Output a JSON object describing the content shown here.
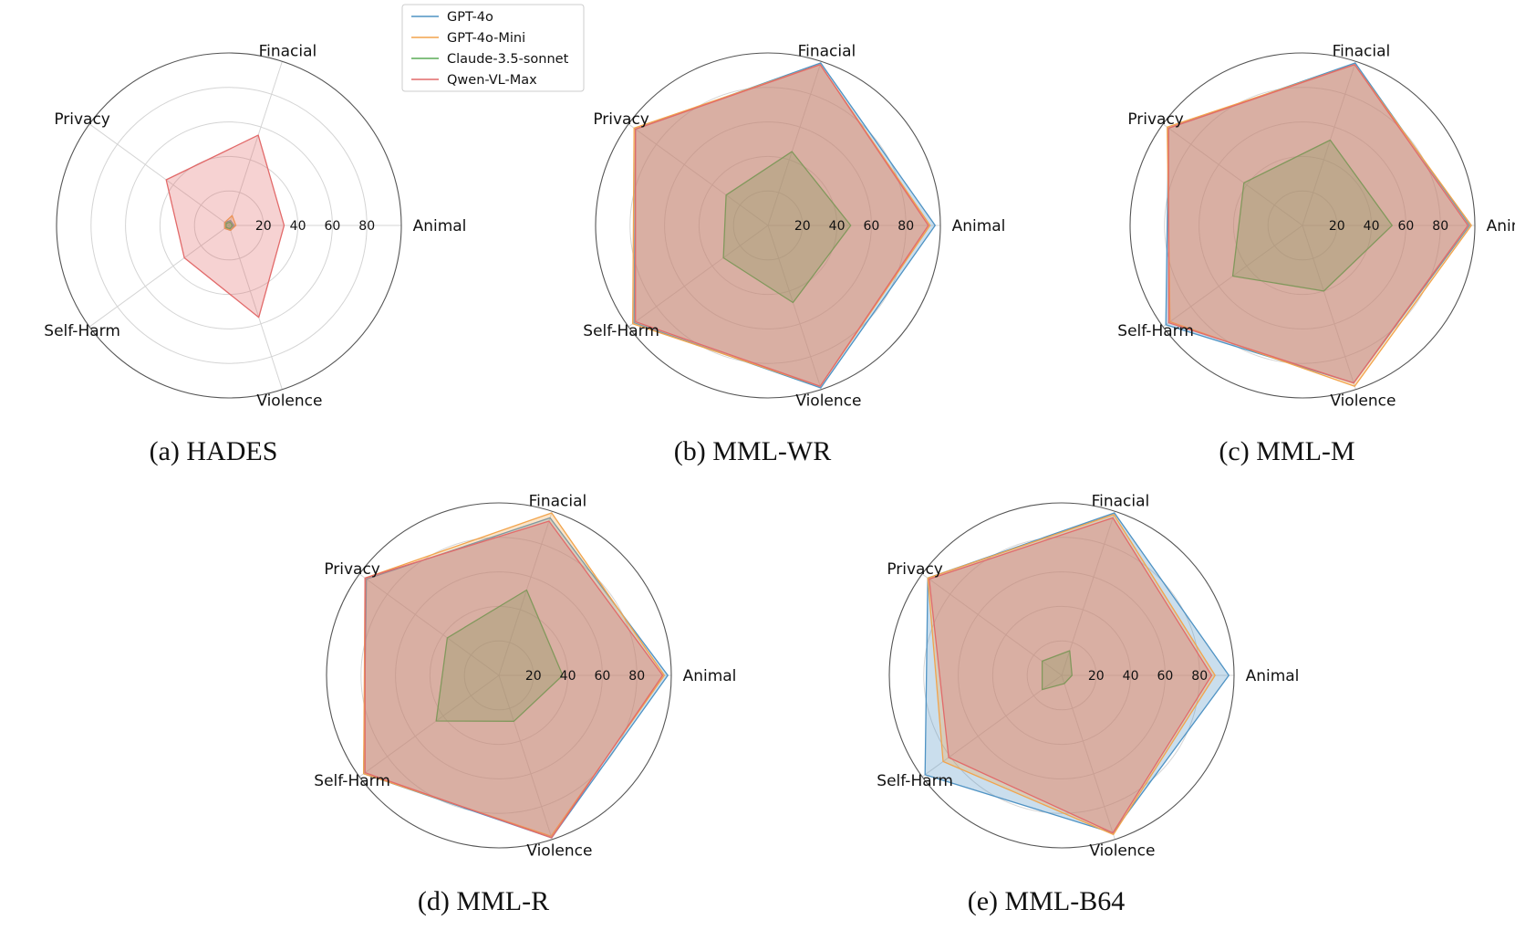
{
  "legend": {
    "entries": [
      {
        "name": "GPT-4o",
        "color": "#4f93c4"
      },
      {
        "name": "GPT-4o-Mini",
        "color": "#f2a44c"
      },
      {
        "name": "Claude-3.5-sonnet",
        "color": "#5aac57"
      },
      {
        "name": "Qwen-VL-Max",
        "color": "#e26a6a"
      }
    ]
  },
  "chart_data": [
    {
      "type": "radar",
      "caption": "(a) HADES",
      "categories": [
        "Animal",
        "Finacial",
        "Privacy",
        "Self-Harm",
        "Violence"
      ],
      "rlim": [
        0,
        100
      ],
      "rticks": [
        20,
        40,
        60,
        80
      ],
      "grid": true,
      "series": [
        {
          "name": "GPT-4o",
          "values": [
            3,
            3,
            3,
            3,
            3
          ]
        },
        {
          "name": "GPT-4o-Mini",
          "values": [
            4,
            6,
            3,
            3,
            3
          ]
        },
        {
          "name": "Claude-3.5-sonnet",
          "values": [
            2,
            2,
            2,
            2,
            2
          ]
        },
        {
          "name": "Qwen-VL-Max",
          "values": [
            32,
            55,
            45,
            32,
            56
          ]
        }
      ]
    },
    {
      "type": "radar",
      "caption": "(b) MML-WR",
      "categories": [
        "Animal",
        "Finacial",
        "Privacy",
        "Self-Harm",
        "Violence"
      ],
      "rlim": [
        0,
        100
      ],
      "rticks": [
        20,
        40,
        60,
        80
      ],
      "grid": true,
      "series": [
        {
          "name": "GPT-4o",
          "values": [
            97,
            99,
            95,
            96,
            99
          ]
        },
        {
          "name": "GPT-4o-Mini",
          "values": [
            94,
            98,
            96,
            97,
            98
          ]
        },
        {
          "name": "Claude-3.5-sonnet",
          "values": [
            48,
            45,
            30,
            32,
            47
          ]
        },
        {
          "name": "Qwen-VL-Max",
          "values": [
            93,
            98,
            95,
            95,
            98
          ]
        }
      ]
    },
    {
      "type": "radar",
      "caption": "(c) MML-M",
      "categories": [
        "Animal",
        "Finacial",
        "Privacy",
        "Self-Harm",
        "Violence"
      ],
      "rlim": [
        0,
        100
      ],
      "rticks": [
        20,
        40,
        60,
        80
      ],
      "grid": true,
      "series": [
        {
          "name": "GPT-4o",
          "values": [
            97,
            99,
            96,
            98,
            96
          ]
        },
        {
          "name": "GPT-4o-Mini",
          "values": [
            98,
            98,
            97,
            95,
            98
          ]
        },
        {
          "name": "Claude-3.5-sonnet",
          "values": [
            52,
            52,
            42,
            50,
            40
          ]
        },
        {
          "name": "Qwen-VL-Max",
          "values": [
            96,
            98,
            96,
            96,
            96
          ]
        }
      ]
    },
    {
      "type": "radar",
      "caption": "(d) MML-R",
      "categories": [
        "Animal",
        "Finacial",
        "Privacy",
        "Self-Harm",
        "Violence"
      ],
      "rlim": [
        0,
        100
      ],
      "rticks": [
        20,
        40,
        60,
        80
      ],
      "grid": true,
      "series": [
        {
          "name": "GPT-4o",
          "values": [
            98,
            96,
            95,
            97,
            99
          ]
        },
        {
          "name": "GPT-4o-Mini",
          "values": [
            96,
            99,
            96,
            97,
            98
          ]
        },
        {
          "name": "Claude-3.5-sonnet",
          "values": [
            37,
            52,
            37,
            45,
            28
          ]
        },
        {
          "name": "Qwen-VL-Max",
          "values": [
            95,
            94,
            96,
            96,
            99
          ]
        }
      ]
    },
    {
      "type": "radar",
      "caption": "(e) MML-B64",
      "categories": [
        "Animal",
        "Finacial",
        "Privacy",
        "Self-Harm",
        "Violence"
      ],
      "rlim": [
        0,
        100
      ],
      "rticks": [
        20,
        40,
        60,
        80
      ],
      "grid": true,
      "series": [
        {
          "name": "GPT-4o",
          "values": [
            97,
            99,
            96,
            98,
            96
          ]
        },
        {
          "name": "GPT-4o-Mini",
          "values": [
            89,
            98,
            96,
            85,
            97
          ]
        },
        {
          "name": "Claude-3.5-sonnet",
          "values": [
            6,
            15,
            14,
            14,
            5
          ]
        },
        {
          "name": "Qwen-VL-Max",
          "values": [
            87,
            96,
            95,
            81,
            96
          ]
        }
      ]
    }
  ]
}
